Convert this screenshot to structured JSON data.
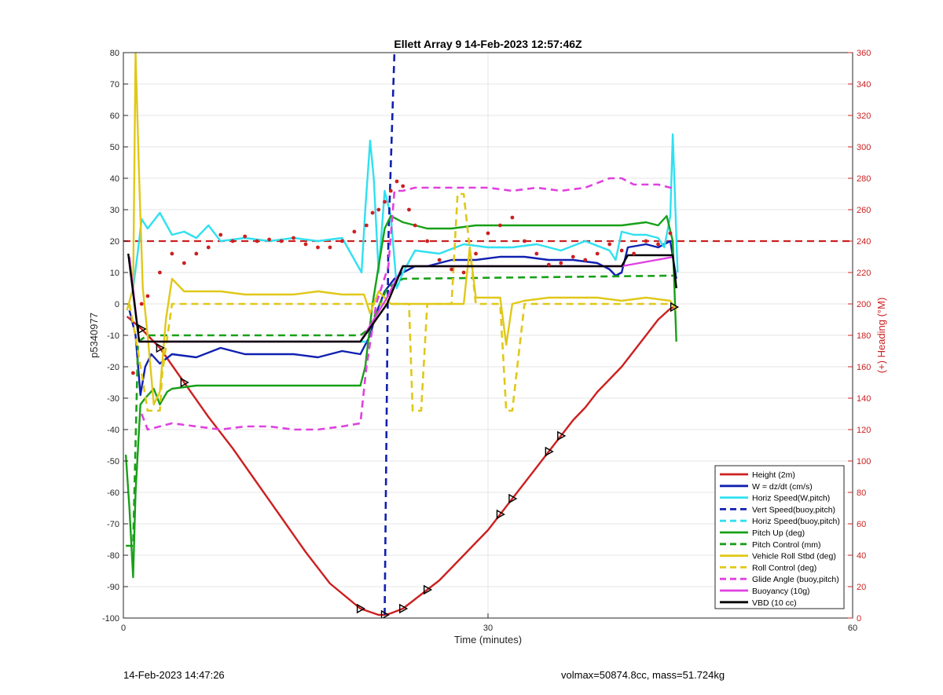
{
  "chart_data": {
    "type": "line",
    "title": "Ellett Array 9 14-Feb-2023 12:57:46Z",
    "xlabel": "Time (minutes)",
    "ylabel_left": "p5340977",
    "ylabel_right": "(+) Heading (°M)",
    "xlim": [
      0,
      60
    ],
    "ylim_left": [
      -100,
      80
    ],
    "ylim_right": [
      0,
      360
    ],
    "xticks": [
      0,
      30,
      60
    ],
    "yticks_left": [
      -100,
      -90,
      -80,
      -70,
      -60,
      -50,
      -40,
      -30,
      -20,
      -10,
      0,
      10,
      20,
      30,
      40,
      50,
      60,
      70,
      80
    ],
    "yticks_right": [
      0,
      20,
      40,
      60,
      80,
      100,
      120,
      140,
      160,
      180,
      200,
      220,
      240,
      260,
      280,
      300,
      320,
      340,
      360
    ],
    "grid": true,
    "legend_location": "bottom-right",
    "colors": {
      "red": "#cc2020",
      "blue": "#1020b0",
      "cyan": "#30e0f0",
      "green": "#18a018",
      "yellow": "#e0c818",
      "magenta": "#e040e0",
      "black": "#000000",
      "right_axis": "#cc2020"
    },
    "series": [
      {
        "name": "Height (2m)",
        "color": "#cc2020",
        "dash": false,
        "x": [
          0.3,
          1.5,
          3,
          5,
          7,
          9,
          11,
          13,
          15,
          17,
          19.5,
          21,
          21.5,
          22,
          23,
          24,
          25,
          26,
          27,
          28,
          29,
          30,
          31,
          32,
          33,
          34,
          35,
          36,
          37,
          38,
          39,
          40,
          41,
          42,
          43,
          44,
          45,
          45.3
        ],
        "y": [
          -4,
          -8,
          -14,
          -25,
          -36,
          -46,
          -57,
          -68,
          -79,
          -89,
          -97,
          -99,
          -99,
          -98.5,
          -97,
          -94,
          -91,
          -88,
          -84,
          -80,
          -76,
          -72,
          -67,
          -62,
          -57,
          -52,
          -47,
          -42,
          -37,
          -33,
          -28,
          -24,
          -20,
          -15,
          -10,
          -5,
          -1.5,
          -1
        ]
      },
      {
        "name": "W = dz/dt (cm/s)",
        "color": "#1020b0",
        "dash": false,
        "x": [
          0.5,
          1.0,
          1.4,
          1.8,
          2.3,
          3,
          4,
          6,
          8,
          10,
          12,
          14,
          16,
          18,
          19.5,
          20.3,
          20.8,
          21.5,
          22.3,
          23,
          24,
          25,
          27,
          29,
          31,
          33,
          35,
          37,
          39,
          40,
          40.5,
          41,
          41.5,
          43,
          44,
          45,
          45.5
        ],
        "y": [
          -2,
          -10,
          -29,
          -20,
          -16,
          -19,
          -16,
          -17,
          -14,
          -16,
          -16,
          -16,
          -17,
          -15,
          -16,
          -10,
          -3,
          4,
          8,
          10,
          12,
          12,
          14,
          14,
          15,
          15,
          14,
          14,
          13,
          11,
          9,
          10,
          18,
          19,
          18,
          20,
          8
        ]
      },
      {
        "name": "Horiz Speed(W,pitch)",
        "color": "#30e0f0",
        "dash": false,
        "x": [
          0.8,
          1.2,
          1.5,
          2,
          3,
          4,
          5,
          6,
          7,
          8,
          10,
          12,
          14,
          16,
          18,
          19.6,
          19.9,
          20.3,
          20.6,
          21,
          21.5,
          22,
          22.5,
          23,
          24,
          26,
          28,
          30,
          32,
          34,
          36,
          38,
          40,
          40.5,
          41,
          42,
          43,
          44,
          44.5,
          45,
          45.2,
          45.6
        ],
        "y": [
          5,
          17,
          27,
          24,
          29,
          22,
          23,
          21,
          25,
          20,
          21,
          20,
          21,
          20,
          21,
          10,
          30,
          52,
          40,
          10,
          36,
          28,
          5,
          10,
          17,
          16,
          19,
          18,
          18,
          19,
          17,
          20,
          17,
          14,
          23,
          22,
          22,
          21,
          18,
          28,
          54,
          10
        ]
      },
      {
        "name": "Vert Speed(buoy,pitch)",
        "color": "#1020b0",
        "dash": true,
        "x": [
          21.5,
          21.8,
          22.3
        ],
        "y": [
          -99,
          20,
          80
        ]
      },
      {
        "name": "Horiz Speed(buoy,pitch)",
        "color": "#30e0f0",
        "dash": true,
        "x": [
          19.5,
          20
        ],
        "y": [
          -12,
          -12
        ]
      },
      {
        "name": "Pitch Up (deg)",
        "color": "#18a018",
        "dash": false,
        "x": [
          0.2,
          0.5,
          0.8,
          1.0,
          1.4,
          1.8,
          2.5,
          3,
          3.6,
          4,
          6,
          8,
          10,
          12,
          14,
          16,
          18,
          19.5,
          19.9,
          20.5,
          21,
          21.5,
          22,
          23,
          25,
          27,
          29,
          31,
          33,
          35,
          37,
          39,
          41,
          43,
          44,
          44.7,
          45.2,
          45.5
        ],
        "y": [
          -48,
          -65,
          -87,
          -60,
          -32,
          -30,
          -27,
          -32,
          -28,
          -27,
          -26,
          -26,
          -26,
          -26,
          -26,
          -26,
          -26,
          -26,
          -20,
          0,
          12,
          24,
          28,
          26,
          24,
          24,
          25,
          25,
          25,
          25,
          25,
          25,
          25,
          26,
          25,
          28,
          20,
          -12
        ]
      },
      {
        "name": "Pitch Control (mm)",
        "color": "#18a018",
        "dash": true,
        "x": [
          0.2,
          0.8,
          1.2,
          2,
          19.5,
          20.2,
          21.7,
          23,
          45.2,
          45.5
        ],
        "y": [
          -77,
          -77,
          -12,
          -10,
          -10,
          -8,
          5,
          8,
          9,
          9
        ]
      },
      {
        "name": "Vehicle Roll Stbd (deg)",
        "color": "#e0c818",
        "dash": false,
        "x": [
          0.3,
          0.8,
          1.0,
          1.3,
          1.6,
          2,
          2.5,
          3,
          3.5,
          4,
          5,
          6,
          8,
          10,
          12,
          14,
          16,
          18,
          19.8,
          20.3,
          21,
          22,
          23,
          24,
          26,
          27,
          28,
          28.5,
          29,
          31,
          31.5,
          32,
          33,
          35,
          37,
          39,
          41,
          43,
          45,
          45.5
        ],
        "y": [
          -2,
          5,
          80,
          40,
          5,
          -10,
          -32,
          -28,
          -5,
          8,
          4,
          4,
          4,
          3,
          3,
          3,
          4,
          3,
          3,
          -3,
          4,
          0,
          0,
          0,
          0,
          0,
          0,
          18,
          2,
          2,
          -13,
          0,
          1,
          2,
          2,
          2,
          1,
          2,
          1,
          -2
        ]
      },
      {
        "name": "Roll Control (deg)",
        "color": "#e0c818",
        "dash": true,
        "x": [
          0.5,
          1.2,
          2,
          2.5,
          3,
          3.2,
          4,
          19.5,
          20.5,
          22,
          23.5,
          23.8,
          24.5,
          25,
          25.5,
          27,
          27.5,
          28,
          29,
          31,
          31.5,
          32,
          33,
          45
        ],
        "y": [
          0,
          -15,
          -34,
          -34,
          -34,
          -22,
          0,
          0,
          0,
          0,
          0,
          -34,
          -34,
          0,
          0,
          0,
          35,
          35,
          0,
          0,
          -34,
          -34,
          0,
          0
        ]
      },
      {
        "name": "Glide Angle (buoy,pitch)",
        "color": "#e040e0",
        "dash": true,
        "x": [
          1.5,
          2,
          4,
          6,
          8,
          10,
          12,
          14,
          16,
          18,
          19.5,
          20,
          20.8,
          21.8,
          22.3,
          23,
          24,
          26,
          28,
          30,
          32,
          34,
          36,
          38,
          40,
          41,
          42,
          44,
          45,
          45.5
        ],
        "y": [
          -35,
          -40,
          -38,
          -39,
          -40,
          -39,
          -39,
          -40,
          -40,
          -39,
          -38,
          -20,
          0,
          12,
          36,
          36,
          37,
          37,
          37,
          37,
          36,
          37,
          36,
          37,
          40,
          40,
          38,
          38,
          37,
          37
        ]
      },
      {
        "name": "Buoyancy (10g)",
        "color": "#e040e0",
        "dash": false,
        "x": [
          0.5,
          1.3,
          2,
          19.5,
          21.7,
          23,
          41,
          45.3
        ],
        "y": [
          15,
          -12,
          -12,
          -12,
          2,
          12,
          12,
          15
        ]
      },
      {
        "name": "VBD (10 cc)",
        "color": "#000000",
        "dash": false,
        "x": [
          0.4,
          1.3,
          2,
          19.5,
          21.7,
          23,
          41,
          41.5,
          45.2,
          45.5
        ],
        "y": [
          16,
          -12,
          -12,
          -12,
          0,
          12,
          12,
          15.5,
          15.5,
          5
        ]
      }
    ],
    "heading_points": {
      "name": "(+) Heading (°M)",
      "color": "#cc2020",
      "x": [
        0.8,
        1.5,
        2,
        3,
        4,
        5,
        6,
        7,
        8,
        9,
        10,
        11,
        12,
        13,
        14,
        15,
        16,
        17,
        18,
        19,
        20,
        20.5,
        21,
        21.5,
        22,
        22.5,
        23,
        23.5,
        24,
        25,
        26,
        27,
        28,
        29,
        30,
        31,
        32,
        33,
        34,
        35,
        36,
        37,
        38,
        39,
        40,
        41,
        42,
        43,
        44,
        45
      ],
      "y": [
        156,
        200,
        205,
        220,
        232,
        226,
        232,
        236,
        244,
        240,
        243,
        240,
        241,
        240,
        242,
        238,
        236,
        236,
        240,
        246,
        250,
        258,
        260,
        265,
        272,
        278,
        275,
        260,
        250,
        240,
        228,
        222,
        220,
        232,
        245,
        250,
        255,
        240,
        232,
        225,
        226,
        230,
        228,
        232,
        238,
        234,
        232,
        240,
        238,
        245
      ]
    },
    "heading_reference": {
      "color": "#cc2020",
      "dash": true,
      "y_left": 20
    },
    "footer_left": "14-Feb-2023 14:47:26",
    "footer_right": "volmax=50874.8cc, mass=51.724kg"
  }
}
